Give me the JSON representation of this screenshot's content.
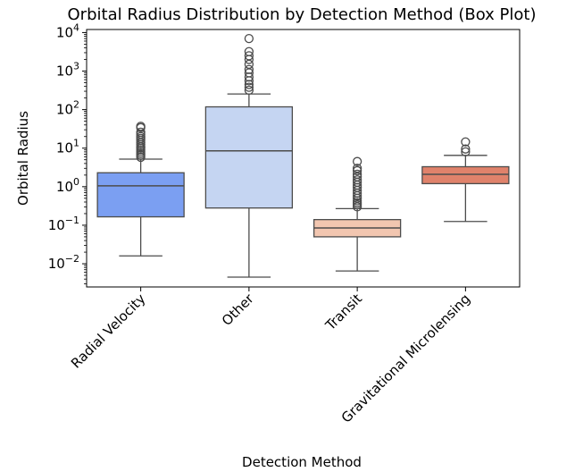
{
  "chart_data": {
    "type": "box",
    "title": "Orbital Radius Distribution by Detection Method (Box Plot)",
    "xlabel": "Detection Method",
    "ylabel": "Orbital Radius",
    "yscale": "log",
    "ylim": [
      0.0025,
      12000
    ],
    "yticks": [
      {
        "value": 0.01,
        "base": "10",
        "exp": "−2"
      },
      {
        "value": 0.1,
        "base": "10",
        "exp": "−1"
      },
      {
        "value": 1,
        "base": "10",
        "exp": "0"
      },
      {
        "value": 10,
        "base": "10",
        "exp": "1"
      },
      {
        "value": 100,
        "base": "10",
        "exp": "2"
      },
      {
        "value": 1000,
        "base": "10",
        "exp": "3"
      },
      {
        "value": 10000,
        "base": "10",
        "exp": "4"
      }
    ],
    "grid": false,
    "categories": [
      "Radial Velocity",
      "Other",
      "Transit",
      "Gravitational Microlensing"
    ],
    "boxes": [
      {
        "name": "Radial Velocity",
        "whisker_low": 0.016,
        "q1": 0.165,
        "median": 1.05,
        "q3": 2.3,
        "whisker_high": 5.2,
        "outliers": [
          5.8,
          6.5,
          7.2,
          8.0,
          9.0,
          10.0,
          11.0,
          12.5,
          14.0,
          16.0,
          18.0,
          20.0,
          23.0,
          26.0,
          34.0,
          37.0
        ],
        "color": "#7b9ff2"
      },
      {
        "name": "Other",
        "whisker_low": 0.0045,
        "q1": 0.28,
        "median": 8.5,
        "q3": 118,
        "whisker_high": 255,
        "outliers": [
          320,
          380,
          450,
          560,
          700,
          900,
          1100,
          1500,
          2000,
          2500,
          3200,
          7000
        ],
        "color": "#c5d5f2"
      },
      {
        "name": "Transit",
        "whisker_low": 0.0065,
        "q1": 0.05,
        "median": 0.085,
        "q3": 0.14,
        "whisker_high": 0.27,
        "outliers": [
          0.3,
          0.34,
          0.38,
          0.43,
          0.5,
          0.58,
          0.68,
          0.8,
          0.95,
          1.1,
          1.3,
          1.5,
          1.8,
          2.1,
          2.6,
          3.0,
          4.5
        ],
        "color": "#f2c6b0"
      },
      {
        "name": "Gravitational Microlensing",
        "whisker_low": 0.125,
        "q1": 1.2,
        "median": 2.1,
        "q3": 3.3,
        "whisker_high": 6.5,
        "outliers": [
          8.0,
          9.5,
          14.5
        ],
        "color": "#e0826b"
      }
    ],
    "median_color": "#4c4c4c",
    "edge_color": "#4c4c4c"
  }
}
